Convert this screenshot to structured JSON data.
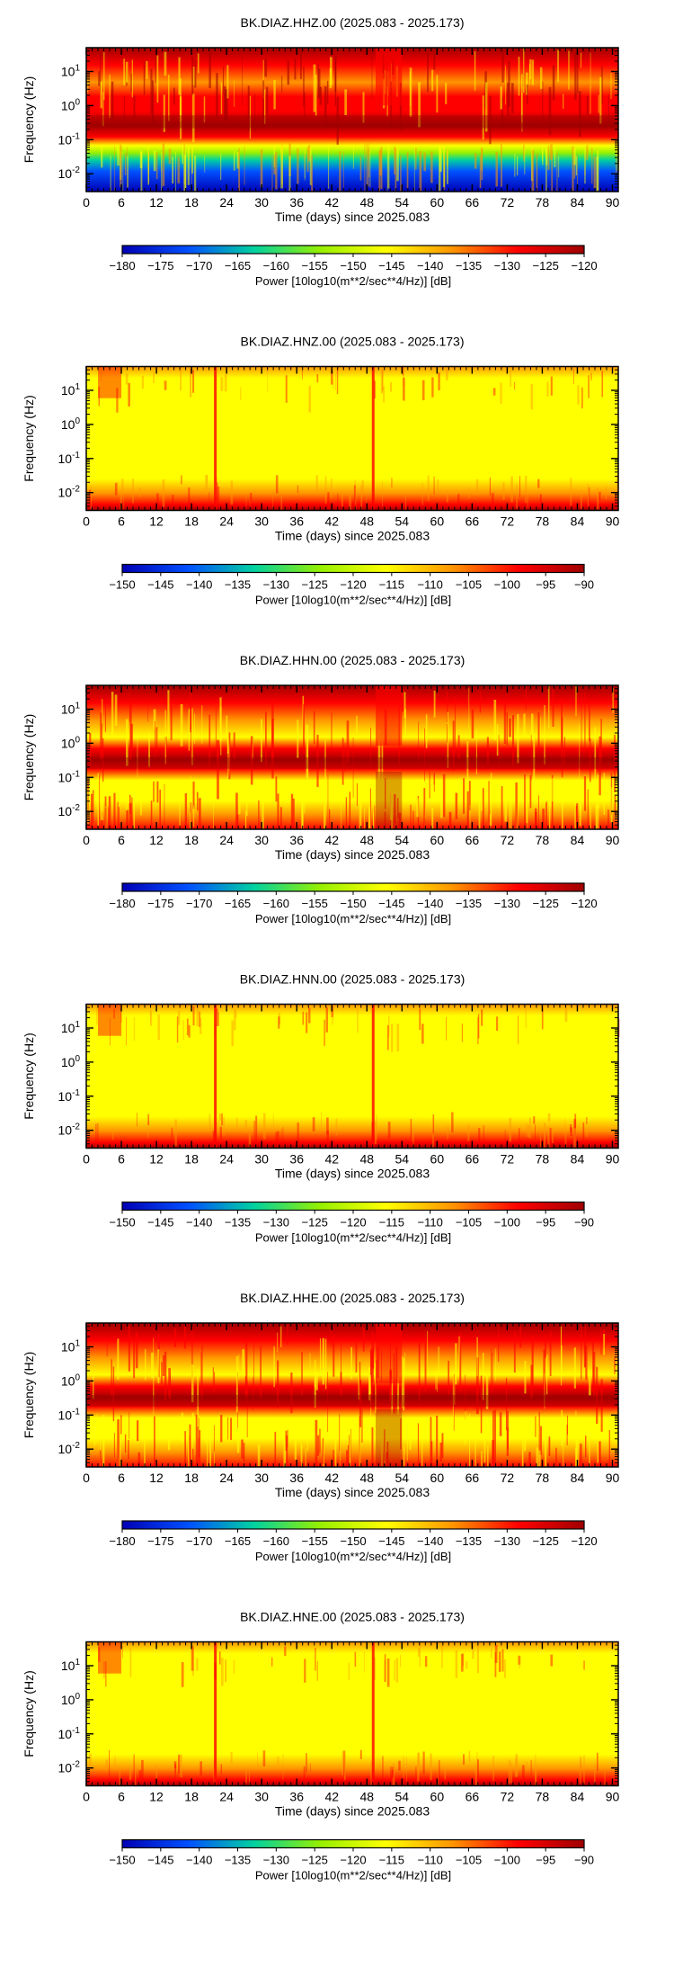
{
  "page": {
    "xlabel": "Time (days) since 2025.083",
    "ylabel": "Frequency (Hz)",
    "x_ticks": [
      "0",
      "6",
      "12",
      "18",
      "24",
      "30",
      "36",
      "42",
      "48",
      "54",
      "60",
      "66",
      "72",
      "78",
      "84",
      "90"
    ],
    "y_ticks": [
      {
        "base": "10",
        "exp": "1"
      },
      {
        "base": "10",
        "exp": "0"
      },
      {
        "base": "10",
        "exp": "-1"
      },
      {
        "base": "10",
        "exp": "-2"
      }
    ],
    "colorbar_label": "Power [10log10(m**2/sec**4/Hz)] [dB]"
  },
  "chart_data": [
    {
      "type": "heatmap",
      "title": "BK.DIAZ.HHZ.00 (2025.083 - 2025.173)",
      "xlim": [
        0,
        91
      ],
      "ylim_hz": [
        0.003,
        50
      ],
      "y_scale": "log",
      "colorbar": {
        "ticks": [
          "−180",
          "−175",
          "−170",
          "−165",
          "−160",
          "−155",
          "−150",
          "−145",
          "−140",
          "−135",
          "−130",
          "−125",
          "−120"
        ],
        "range": [
          -180,
          -120
        ]
      },
      "colormap": [
        "#0000b4",
        "#0050ff",
        "#00d2a0",
        "#96f000",
        "#ffff00",
        "#ff9600",
        "#ff0000",
        "#a00000"
      ],
      "pattern": "broadband"
    },
    {
      "type": "heatmap",
      "title": "BK.DIAZ.HNZ.00 (2025.083 - 2025.173)",
      "xlim": [
        0,
        91
      ],
      "ylim_hz": [
        0.003,
        50
      ],
      "y_scale": "log",
      "colorbar": {
        "ticks": [
          "−150",
          "−145",
          "−140",
          "−135",
          "−130",
          "−125",
          "−120",
          "−115",
          "−110",
          "−105",
          "−100",
          "−95",
          "−90"
        ],
        "range": [
          -150,
          -90
        ]
      },
      "colormap": [
        "#0000b4",
        "#0050ff",
        "#00d2a0",
        "#96f000",
        "#ffff00",
        "#ff9600",
        "#ff0000",
        "#a00000"
      ],
      "pattern": "strong-motion"
    },
    {
      "type": "heatmap",
      "title": "BK.DIAZ.HHN.00 (2025.083 - 2025.173)",
      "xlim": [
        0,
        91
      ],
      "ylim_hz": [
        0.003,
        50
      ],
      "y_scale": "log",
      "colorbar": {
        "ticks": [
          "−180",
          "−175",
          "−170",
          "−165",
          "−160",
          "−155",
          "−150",
          "−145",
          "−140",
          "−135",
          "−130",
          "−125",
          "−120"
        ],
        "range": [
          -180,
          -120
        ]
      },
      "colormap": [
        "#0000b4",
        "#0050ff",
        "#00d2a0",
        "#96f000",
        "#ffff00",
        "#ff9600",
        "#ff0000",
        "#a00000"
      ],
      "pattern": "broadband-horizontal"
    },
    {
      "type": "heatmap",
      "title": "BK.DIAZ.HNN.00 (2025.083 - 2025.173)",
      "xlim": [
        0,
        91
      ],
      "ylim_hz": [
        0.003,
        50
      ],
      "y_scale": "log",
      "colorbar": {
        "ticks": [
          "−150",
          "−145",
          "−140",
          "−135",
          "−130",
          "−125",
          "−120",
          "−115",
          "−110",
          "−105",
          "−100",
          "−95",
          "−90"
        ],
        "range": [
          -150,
          -90
        ]
      },
      "colormap": [
        "#0000b4",
        "#0050ff",
        "#00d2a0",
        "#96f000",
        "#ffff00",
        "#ff9600",
        "#ff0000",
        "#a00000"
      ],
      "pattern": "strong-motion"
    },
    {
      "type": "heatmap",
      "title": "BK.DIAZ.HHE.00 (2025.083 - 2025.173)",
      "xlim": [
        0,
        91
      ],
      "ylim_hz": [
        0.003,
        50
      ],
      "y_scale": "log",
      "colorbar": {
        "ticks": [
          "−180",
          "−175",
          "−170",
          "−165",
          "−160",
          "−155",
          "−150",
          "−145",
          "−140",
          "−135",
          "−130",
          "−125",
          "−120"
        ],
        "range": [
          -180,
          -120
        ]
      },
      "colormap": [
        "#0000b4",
        "#0050ff",
        "#00d2a0",
        "#96f000",
        "#ffff00",
        "#ff9600",
        "#ff0000",
        "#a00000"
      ],
      "pattern": "broadband-horizontal"
    },
    {
      "type": "heatmap",
      "title": "BK.DIAZ.HNE.00 (2025.083 - 2025.173)",
      "xlim": [
        0,
        91
      ],
      "ylim_hz": [
        0.003,
        50
      ],
      "y_scale": "log",
      "colorbar": {
        "ticks": [
          "−150",
          "−145",
          "−140",
          "−135",
          "−130",
          "−125",
          "−120",
          "−115",
          "−110",
          "−105",
          "−100",
          "−95",
          "−90"
        ],
        "range": [
          -150,
          -90
        ]
      },
      "colormap": [
        "#0000b4",
        "#0050ff",
        "#00d2a0",
        "#96f000",
        "#ffff00",
        "#ff9600",
        "#ff0000",
        "#a00000"
      ],
      "pattern": "strong-motion"
    }
  ]
}
